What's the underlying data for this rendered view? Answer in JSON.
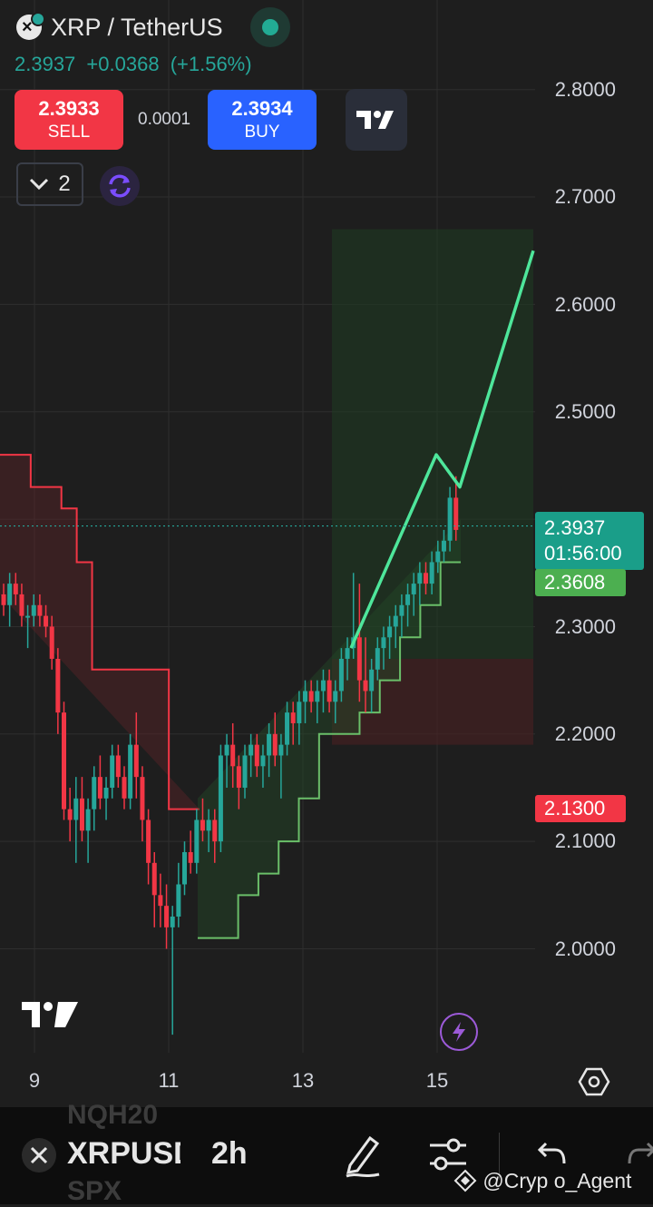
{
  "header": {
    "symbol_title": "XRP / TetherUS",
    "last_price": "2.3937",
    "change": "+0.0368",
    "change_pct": "(+1.56%)",
    "sell_price": "2.3933",
    "sell_label": "SELL",
    "spread": "0.0001",
    "buy_price": "2.3934",
    "buy_label": "BUY",
    "collapse_count": "2"
  },
  "price_axis": [
    "2.8000",
    "2.7000",
    "2.6000",
    "2.5000",
    "2.3000",
    "2.2000",
    "2.1000",
    "2.0000"
  ],
  "time_axis": [
    "9",
    "11",
    "13",
    "15"
  ],
  "tags": {
    "last_price": "2.3937",
    "countdown": "01:56:00",
    "trailing": "2.3608",
    "stop": "2.1300"
  },
  "toolbar": {
    "ghost_top": "NQH20",
    "symbol": "XRPUSDT",
    "interval": "2h",
    "ghost_bottom": "SPX"
  },
  "watermark": {
    "credit": "@Cryp  o_Agent"
  },
  "colors": {
    "up": "#26a69a",
    "down": "#f23645",
    "buy": "#2962ff",
    "trail_upper": "#f23645",
    "trail_lower": "#6abf69",
    "projection": "#4ee69b"
  },
  "icons": [
    "symbol-logo-icon",
    "live-dot-icon",
    "tradingview-logo-icon",
    "chevron-down-icon",
    "refresh-icon",
    "lightning-icon",
    "settings-hexagon-icon",
    "close-icon",
    "pencil-icon",
    "sliders-icon",
    "undo-icon",
    "redo-icon",
    "binance-logo-icon"
  ],
  "chart_data": {
    "type": "candlestick",
    "interval": "2h",
    "ylim": [
      1.9,
      2.83
    ],
    "x_ticks": [
      "9",
      "11",
      "13",
      "15"
    ],
    "candles_ohlc": [
      [
        2.33,
        2.34,
        2.31,
        2.32
      ],
      [
        2.32,
        2.35,
        2.3,
        2.34
      ],
      [
        2.34,
        2.35,
        2.32,
        2.33
      ],
      [
        2.33,
        2.34,
        2.3,
        2.31
      ],
      [
        2.31,
        2.32,
        2.28,
        2.31
      ],
      [
        2.31,
        2.33,
        2.3,
        2.32
      ],
      [
        2.32,
        2.33,
        2.3,
        2.31
      ],
      [
        2.31,
        2.32,
        2.29,
        2.3
      ],
      [
        2.3,
        2.31,
        2.26,
        2.27
      ],
      [
        2.27,
        2.28,
        2.2,
        2.22
      ],
      [
        2.22,
        2.23,
        2.12,
        2.13
      ],
      [
        2.13,
        2.15,
        2.1,
        2.12
      ],
      [
        2.12,
        2.16,
        2.08,
        2.14
      ],
      [
        2.14,
        2.16,
        2.1,
        2.11
      ],
      [
        2.11,
        2.14,
        2.08,
        2.13
      ],
      [
        2.13,
        2.17,
        2.11,
        2.16
      ],
      [
        2.16,
        2.18,
        2.13,
        2.14
      ],
      [
        2.14,
        2.16,
        2.12,
        2.15
      ],
      [
        2.15,
        2.19,
        2.14,
        2.18
      ],
      [
        2.18,
        2.19,
        2.15,
        2.16
      ],
      [
        2.16,
        2.17,
        2.13,
        2.14
      ],
      [
        2.14,
        2.2,
        2.13,
        2.19
      ],
      [
        2.19,
        2.22,
        2.14,
        2.16
      ],
      [
        2.16,
        2.17,
        2.1,
        2.12
      ],
      [
        2.12,
        2.13,
        2.06,
        2.08
      ],
      [
        2.08,
        2.09,
        2.02,
        2.05
      ],
      [
        2.05,
        2.07,
        2.02,
        2.04
      ],
      [
        2.04,
        2.06,
        2.0,
        2.02
      ],
      [
        2.02,
        2.04,
        1.92,
        2.03
      ],
      [
        2.03,
        2.08,
        2.02,
        2.06
      ],
      [
        2.06,
        2.1,
        2.05,
        2.09
      ],
      [
        2.09,
        2.11,
        2.07,
        2.08
      ],
      [
        2.08,
        2.13,
        2.07,
        2.12
      ],
      [
        2.12,
        2.14,
        2.1,
        2.11
      ],
      [
        2.11,
        2.13,
        2.09,
        2.12
      ],
      [
        2.12,
        2.13,
        2.08,
        2.1
      ],
      [
        2.1,
        2.19,
        2.09,
        2.18
      ],
      [
        2.18,
        2.2,
        2.15,
        2.19
      ],
      [
        2.19,
        2.21,
        2.15,
        2.17
      ],
      [
        2.17,
        2.18,
        2.13,
        2.15
      ],
      [
        2.15,
        2.19,
        2.14,
        2.18
      ],
      [
        2.18,
        2.2,
        2.16,
        2.19
      ],
      [
        2.19,
        2.2,
        2.16,
        2.17
      ],
      [
        2.17,
        2.19,
        2.15,
        2.18
      ],
      [
        2.18,
        2.21,
        2.16,
        2.2
      ],
      [
        2.2,
        2.22,
        2.17,
        2.18
      ],
      [
        2.18,
        2.2,
        2.14,
        2.19
      ],
      [
        2.19,
        2.23,
        2.18,
        2.22
      ],
      [
        2.22,
        2.23,
        2.19,
        2.21
      ],
      [
        2.21,
        2.24,
        2.19,
        2.23
      ],
      [
        2.23,
        2.25,
        2.21,
        2.24
      ],
      [
        2.24,
        2.25,
        2.22,
        2.23
      ],
      [
        2.23,
        2.25,
        2.21,
        2.24
      ],
      [
        2.24,
        2.26,
        2.22,
        2.25
      ],
      [
        2.25,
        2.26,
        2.22,
        2.23
      ],
      [
        2.23,
        2.25,
        2.21,
        2.24
      ],
      [
        2.24,
        2.28,
        2.23,
        2.27
      ],
      [
        2.27,
        2.29,
        2.25,
        2.28
      ],
      [
        2.28,
        2.35,
        2.27,
        2.29
      ],
      [
        2.29,
        2.34,
        2.23,
        2.25
      ],
      [
        2.25,
        2.29,
        2.22,
        2.24
      ],
      [
        2.24,
        2.27,
        2.22,
        2.26
      ],
      [
        2.26,
        2.29,
        2.25,
        2.28
      ],
      [
        2.28,
        2.3,
        2.26,
        2.29
      ],
      [
        2.29,
        2.31,
        2.27,
        2.3
      ],
      [
        2.3,
        2.32,
        2.28,
        2.31
      ],
      [
        2.31,
        2.33,
        2.29,
        2.32
      ],
      [
        2.32,
        2.34,
        2.3,
        2.33
      ],
      [
        2.33,
        2.35,
        2.31,
        2.34
      ],
      [
        2.34,
        2.36,
        2.32,
        2.35
      ],
      [
        2.35,
        2.36,
        2.33,
        2.34
      ],
      [
        2.34,
        2.37,
        2.33,
        2.36
      ],
      [
        2.36,
        2.38,
        2.35,
        2.37
      ],
      [
        2.37,
        2.39,
        2.36,
        2.38
      ],
      [
        2.38,
        2.43,
        2.37,
        2.42
      ],
      [
        2.42,
        2.44,
        2.38,
        2.39
      ]
    ],
    "trailing_upper": [
      2.46,
      2.46,
      2.43,
      2.43,
      2.41,
      2.36,
      2.26,
      2.26,
      2.26,
      2.26,
      2.26,
      2.13,
      2.13
    ],
    "trailing_lower": [
      2.01,
      2.01,
      2.05,
      2.07,
      2.1,
      2.14,
      2.2,
      2.2,
      2.22,
      2.25,
      2.29,
      2.32,
      2.36
    ],
    "projection_path": [
      2.28,
      2.46,
      2.43,
      2.65
    ],
    "target_zone": [
      2.27,
      2.67
    ],
    "stop_zone": [
      2.19,
      2.27
    ],
    "last_price": 2.3937,
    "trailing_level": 2.3608,
    "stop_level": 2.13
  }
}
